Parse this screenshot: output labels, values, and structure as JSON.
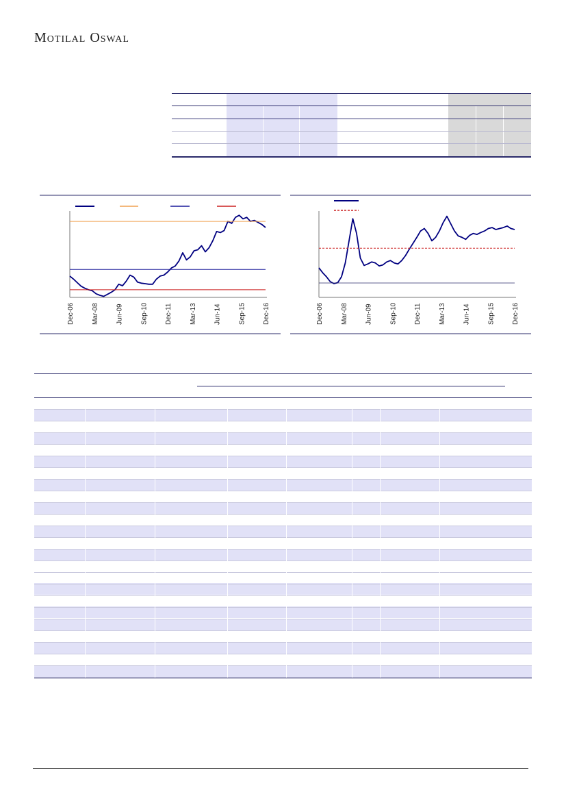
{
  "header": {
    "brand": "Motilal Oswal"
  },
  "charts": [
    {
      "chart_data": {
        "type": "line",
        "title": "",
        "x_tick_labels": [
          "Dec-06",
          "Mar-08",
          "Jun-09",
          "Sep-10",
          "Dec-11",
          "Mar-13",
          "Jun-14",
          "Sep-15",
          "Dec-16"
        ],
        "legend": "top",
        "series": [
          {
            "color": "#000080",
            "values": [
              0.82,
              0.76,
              0.69,
              0.62,
              0.58,
              0.55,
              0.53,
              0.47,
              0.44,
              0.42,
              0.46,
              0.5,
              0.55,
              0.66,
              0.63,
              0.72,
              0.84,
              0.8,
              0.7,
              0.68,
              0.67,
              0.66,
              0.66,
              0.76,
              0.82,
              0.84,
              0.9,
              0.98,
              1.02,
              1.12,
              1.28,
              1.14,
              1.2,
              1.32,
              1.34,
              1.42,
              1.3,
              1.38,
              1.52,
              1.7,
              1.68,
              1.72,
              1.9,
              1.86,
              1.98,
              2.02,
              1.95,
              1.98,
              1.9,
              1.92,
              1.88,
              1.84,
              1.78
            ]
          },
          {
            "color": "#f0a050",
            "values": [
              1.9,
              1.9
            ]
          },
          {
            "color": "#1a1a9a",
            "values": [
              0.95,
              0.95
            ]
          },
          {
            "color": "#cc2020",
            "values": [
              0.55,
              0.55
            ]
          }
        ]
      }
    },
    {
      "chart_data": {
        "type": "line",
        "title": "",
        "x_tick_labels": [
          "Dec-06",
          "Mar-08",
          "Jun-09",
          "Sep-10",
          "Dec-11",
          "Mar-13",
          "Jun-14",
          "Sep-15",
          "Dec-16"
        ],
        "legend": "top",
        "series": [
          {
            "color": "#000080",
            "values": [
              0.8,
              0.7,
              0.62,
              0.52,
              0.48,
              0.5,
              0.62,
              0.9,
              1.35,
              1.8,
              1.5,
              1.0,
              0.85,
              0.88,
              0.92,
              0.9,
              0.84,
              0.86,
              0.92,
              0.95,
              0.9,
              0.88,
              0.95,
              1.05,
              1.18,
              1.3,
              1.42,
              1.55,
              1.6,
              1.5,
              1.35,
              1.42,
              1.55,
              1.72,
              1.85,
              1.7,
              1.55,
              1.45,
              1.42,
              1.38,
              1.46,
              1.5,
              1.48,
              1.52,
              1.55,
              1.6,
              1.62,
              1.58,
              1.6,
              1.62,
              1.65,
              1.6,
              1.58
            ]
          },
          {
            "color": "#cc2020",
            "values": [
              1.2,
              1.2
            ]
          }
        ]
      }
    }
  ]
}
